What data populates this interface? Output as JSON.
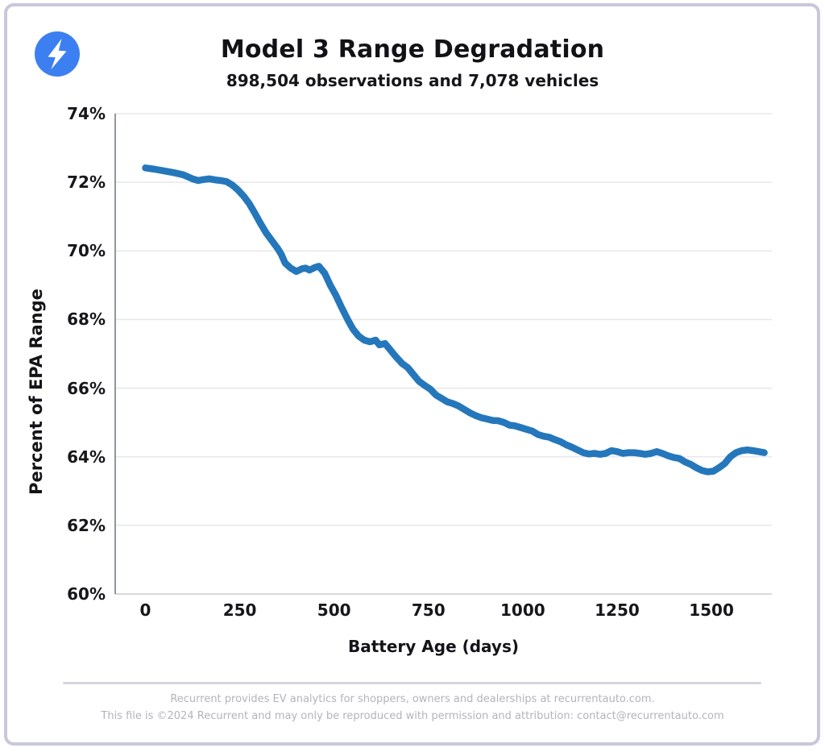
{
  "header": {
    "title": "Model 3 Range Degradation",
    "subtitle": "898,504 observations and 7,078 vehicles"
  },
  "logo": {
    "icon": "lightning-bolt-icon",
    "background_color": "#3c7ff0",
    "bolt_color": "#ffffff"
  },
  "chart_data": {
    "type": "line",
    "title": "Model 3 Range Degradation",
    "subtitle": "898,504 observations and 7,078 vehicles",
    "xlabel": "Battery Age (days)",
    "ylabel": "Percent of EPA Range",
    "xlim": [
      -80,
      1660
    ],
    "ylim": [
      60,
      74
    ],
    "x_ticks": [
      0,
      250,
      500,
      750,
      1000,
      1250,
      1500
    ],
    "y_ticks": [
      60,
      62,
      64,
      66,
      68,
      70,
      72,
      74
    ],
    "y_tick_suffix": "%",
    "grid": "horizontal",
    "legend": "none",
    "line_color": "#2577bb",
    "gridline_color": "#e9e9ec",
    "left_spine_color": "#9296a0",
    "bottom_spine_color": "#d8d8de",
    "series": [
      {
        "x": [
          0,
          25,
          50,
          75,
          100,
          125,
          140,
          155,
          170,
          185,
          200,
          215,
          230,
          245,
          260,
          275,
          290,
          305,
          320,
          335,
          350,
          360,
          370,
          385,
          400,
          415,
          425,
          435,
          450,
          460,
          475,
          490,
          505,
          520,
          536,
          550,
          565,
          580,
          595,
          610,
          620,
          635,
          650,
          665,
          680,
          695,
          710,
          725,
          740,
          755,
          770,
          785,
          800,
          815,
          830,
          845,
          860,
          875,
          890,
          905,
          920,
          935,
          950,
          965,
          980,
          995,
          1010,
          1025,
          1040,
          1055,
          1070,
          1085,
          1100,
          1115,
          1130,
          1145,
          1160,
          1175,
          1190,
          1205,
          1220,
          1235,
          1250,
          1265,
          1280,
          1295,
          1310,
          1325,
          1340,
          1355,
          1370,
          1385,
          1400,
          1415,
          1430,
          1445,
          1460,
          1475,
          1490,
          1505,
          1520,
          1535,
          1550,
          1565,
          1580,
          1595,
          1610,
          1625,
          1640
        ],
        "y": [
          72.42,
          72.38,
          72.33,
          72.28,
          72.22,
          72.1,
          72.05,
          72.08,
          72.1,
          72.07,
          72.05,
          72.02,
          71.92,
          71.78,
          71.6,
          71.38,
          71.1,
          70.8,
          70.52,
          70.3,
          70.08,
          69.9,
          69.65,
          69.5,
          69.4,
          69.48,
          69.5,
          69.44,
          69.52,
          69.55,
          69.35,
          69.0,
          68.7,
          68.35,
          68.0,
          67.72,
          67.52,
          67.4,
          67.35,
          67.4,
          67.26,
          67.3,
          67.1,
          66.9,
          66.72,
          66.6,
          66.4,
          66.2,
          66.08,
          65.97,
          65.8,
          65.7,
          65.6,
          65.55,
          65.48,
          65.38,
          65.28,
          65.2,
          65.14,
          65.1,
          65.06,
          65.05,
          65.0,
          64.92,
          64.9,
          64.85,
          64.8,
          64.75,
          64.65,
          64.6,
          64.57,
          64.5,
          64.44,
          64.35,
          64.28,
          64.2,
          64.12,
          64.08,
          64.1,
          64.07,
          64.1,
          64.18,
          64.15,
          64.1,
          64.12,
          64.12,
          64.1,
          64.07,
          64.1,
          64.15,
          64.1,
          64.03,
          63.98,
          63.95,
          63.85,
          63.78,
          63.68,
          63.6,
          63.56,
          63.58,
          63.68,
          63.8,
          64.0,
          64.12,
          64.18,
          64.2,
          64.18,
          64.15,
          64.12
        ]
      }
    ]
  },
  "footer": {
    "line1": "Recurrent provides EV analytics for shoppers, owners and dealerships at recurrentauto.com.",
    "line2": "This file is ©2024 Recurrent and may only be reproduced with permission and attribution: contact@recurrentauto.com"
  }
}
